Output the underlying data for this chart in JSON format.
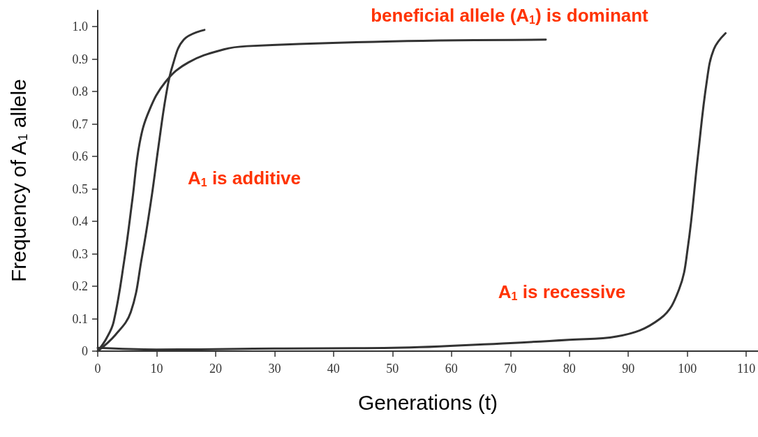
{
  "chart_data": {
    "type": "line",
    "xlabel": "Generations (t)",
    "ylabel": "Frequency of A$_{1}$ allele",
    "xlim": [
      0,
      112
    ],
    "xticks": [
      0,
      10,
      20,
      30,
      40,
      50,
      60,
      70,
      80,
      90,
      100,
      110
    ],
    "ylim": [
      0,
      1.05
    ],
    "yticks": [
      0,
      0.1,
      0.2,
      0.3,
      0.4,
      0.5,
      0.6,
      0.7,
      0.8,
      0.9,
      {
        "value": 1,
        "label": "1.0"
      }
    ],
    "grid": false,
    "marker": "none",
    "line_style": "solid",
    "series": [
      {
        "color": "#333333",
        "x": [
          0,
          1.5,
          2.7,
          4.5,
          5.9,
          7.1,
          8.7,
          11.5,
          15.4,
          21.4,
          25.3,
          50,
          76
        ],
        "values": [
          0,
          0.04,
          0.09,
          0.28,
          0.47,
          0.64,
          0.74,
          0.83,
          0.89,
          0.93,
          0.94,
          0.955,
          0.96
        ]
      },
      {
        "color": "#333333",
        "x": [
          0,
          3,
          5.6,
          7.5,
          9.1,
          10.3,
          11.6,
          12.7,
          14.6,
          18.1
        ],
        "values": [
          0,
          0.05,
          0.12,
          0.29,
          0.47,
          0.63,
          0.79,
          0.88,
          0.96,
          0.99
        ]
      },
      {
        "color": "#333333",
        "x": [
          0,
          10,
          30,
          50,
          70,
          80,
          88,
          95.4,
          98.6,
          100.1,
          101.8,
          103.3,
          104.5,
          106.5
        ],
        "values": [
          0.01,
          0.005,
          0.008,
          0.01,
          0.025,
          0.035,
          0.045,
          0.1,
          0.19,
          0.32,
          0.6,
          0.83,
          0.93,
          0.98
        ]
      }
    ],
    "annotations": [
      "beneficial allele (A$_{1}$) is dominant",
      "A$_{1}$ is additive",
      "A$_{1}$ is recessive"
    ]
  }
}
